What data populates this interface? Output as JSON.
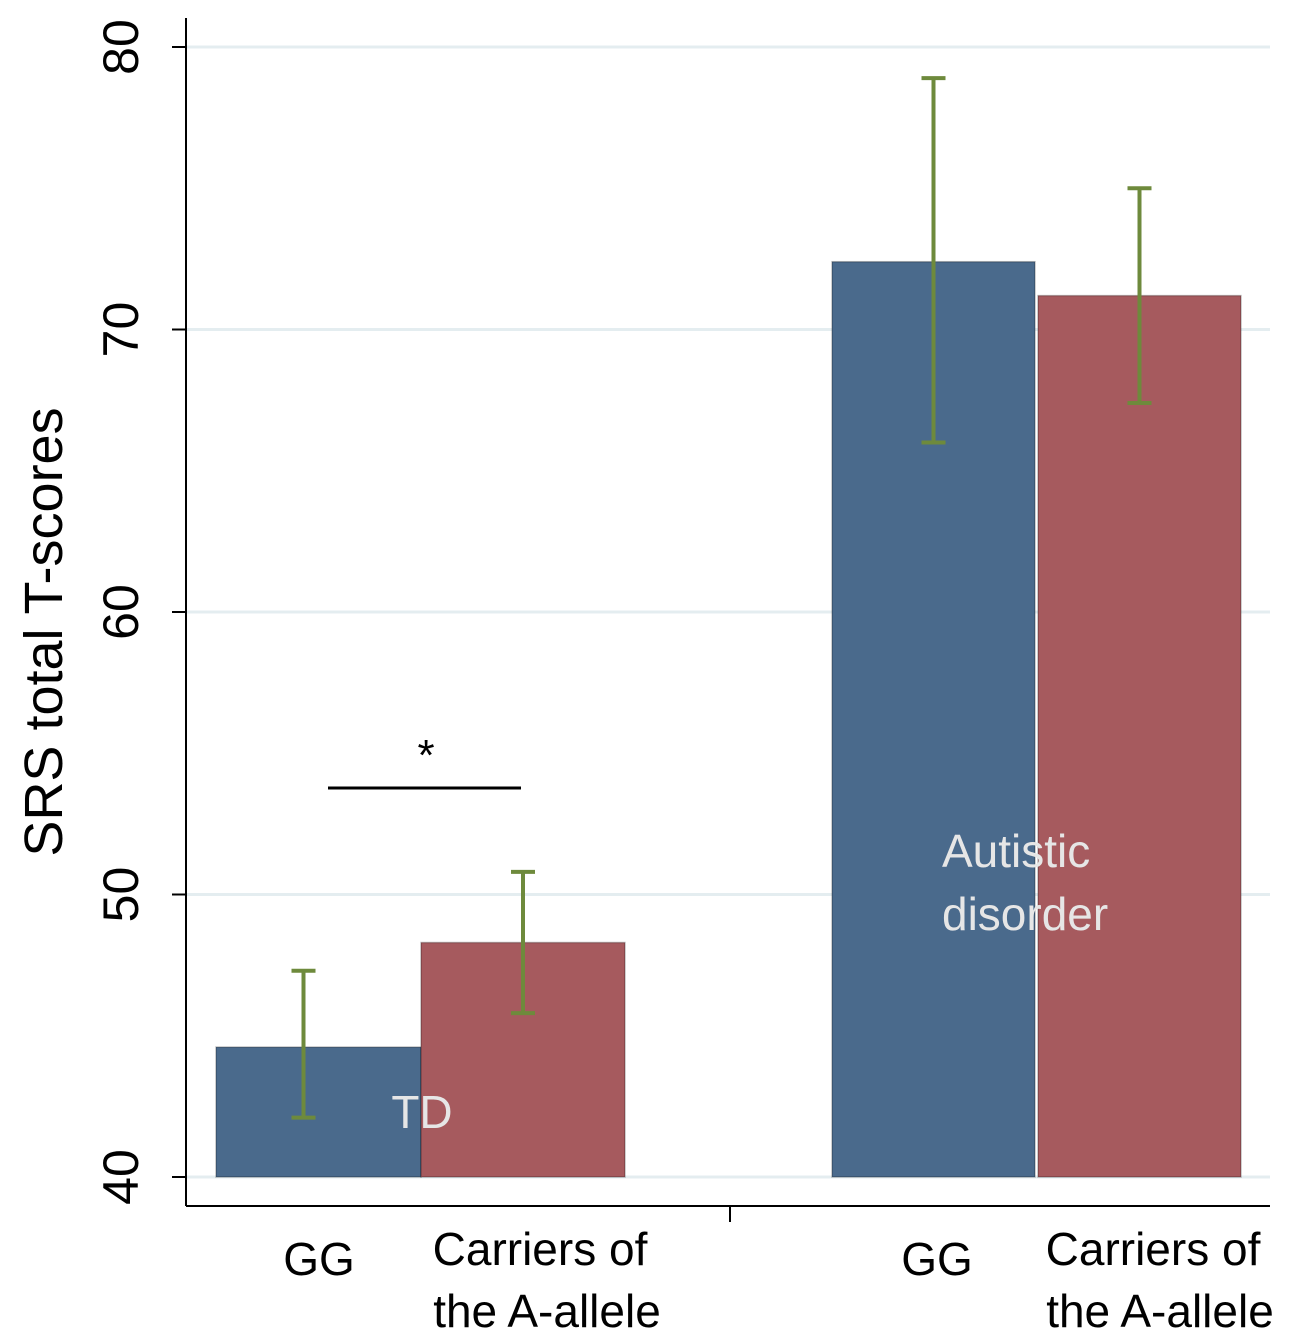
{
  "chart_data": {
    "type": "bar",
    "ylabel": "SRS total T-scores",
    "ylim": [
      40,
      80
    ],
    "yticks": [
      40,
      50,
      60,
      70,
      80
    ],
    "ytick_labels": [
      "40",
      "50",
      "60",
      "70",
      "80"
    ],
    "grid": true,
    "groups": [
      {
        "name": "TD",
        "bars": [
          {
            "label": "GG",
            "value": 44.6,
            "err_low": 42.1,
            "err_high": 47.3,
            "color": "#4a6a8c"
          },
          {
            "label": "Carriers of the A-allele",
            "value": 48.3,
            "err_low": 45.8,
            "err_high": 50.8,
            "color": "#a65a5e"
          }
        ],
        "significance": "*"
      },
      {
        "name": "Autistic disorder",
        "bars": [
          {
            "label": "GG",
            "value": 72.4,
            "err_low": 66.0,
            "err_high": 78.9,
            "color": "#4a6a8c"
          },
          {
            "label": "Carriers of the A-allele",
            "value": 71.2,
            "err_low": 67.4,
            "err_high": 75.0,
            "color": "#a65a5e"
          }
        ],
        "significance": ""
      }
    ],
    "colors": {
      "gg": "#4a6a8c",
      "carrier": "#a65a5e",
      "error_bar": "#6e8a3c",
      "grid": "#e4edf0",
      "group_label": "#e6e6e6"
    }
  },
  "xtick_labels": {
    "td_gg": "GG",
    "td_carrier_line1": "Carriers of",
    "td_carrier_line2": "the A-allele",
    "ad_gg": "GG",
    "ad_carrier_line1": "Carriers of",
    "ad_carrier_line2": "the A-allele"
  },
  "group_labels": {
    "td": "TD",
    "ad_line1": "Autistic",
    "ad_line2": "disorder"
  },
  "significance_marker": "*"
}
